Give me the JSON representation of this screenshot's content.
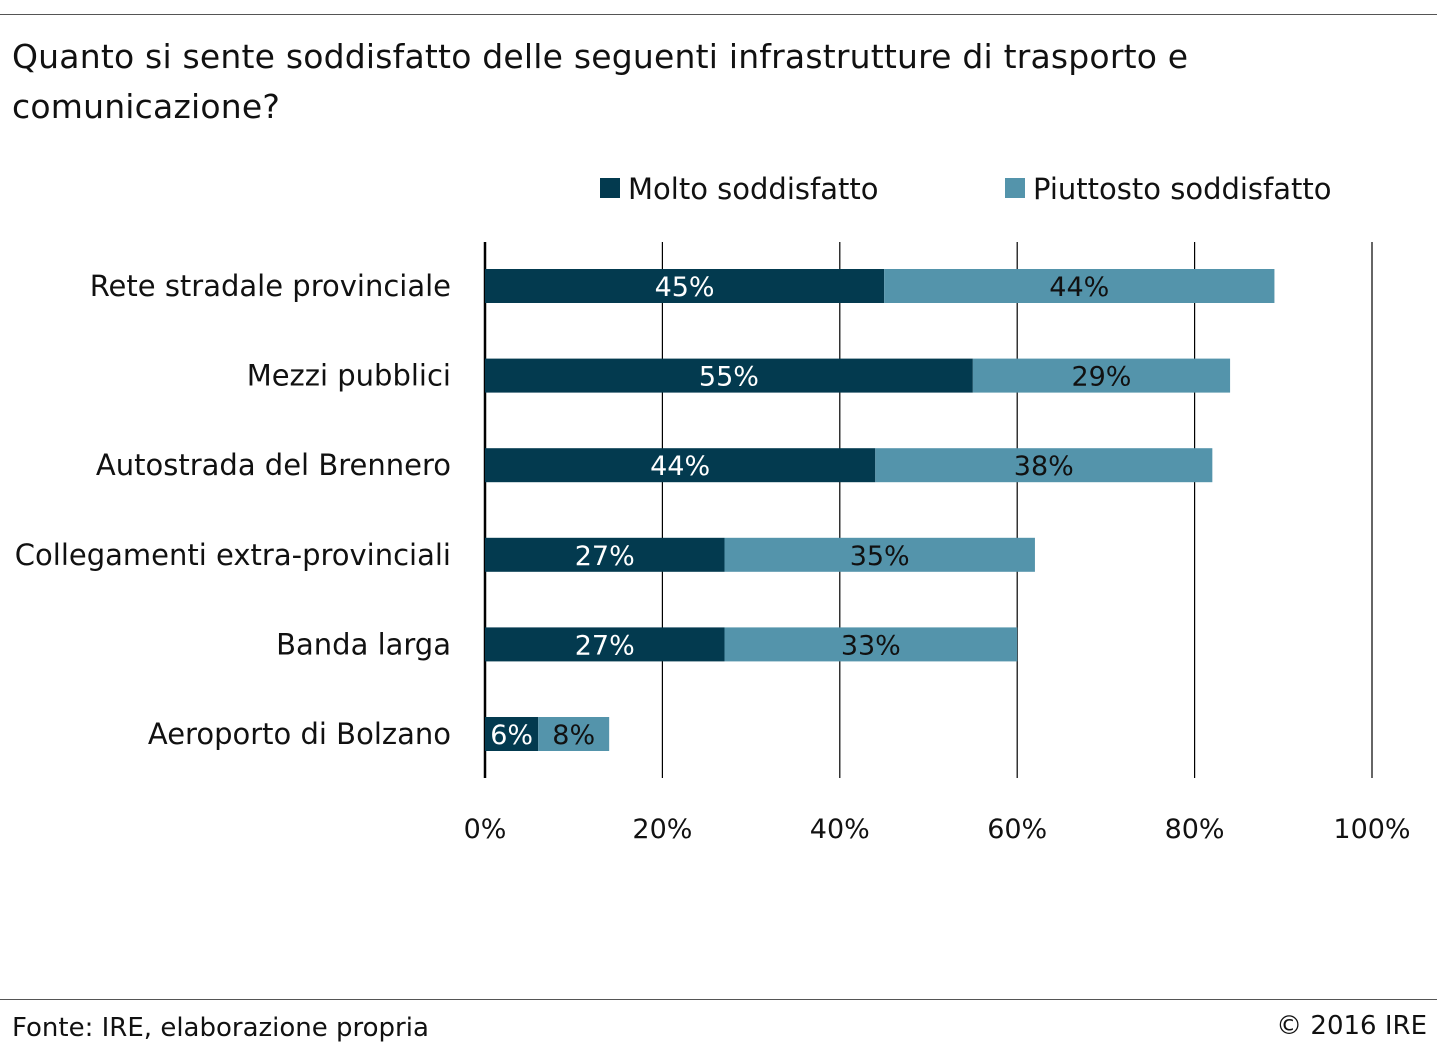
{
  "title": "Quanto si sente soddisfatto delle seguenti infrastrutture di trasporto e comunicazione?",
  "footer": {
    "source": "Fonte: IRE, elaborazione propria",
    "copyright": "© 2016 IRE"
  },
  "colors": {
    "molto": "#033a4f",
    "piuttosto": "#5494ab",
    "grid": "#000000"
  },
  "chart_data": {
    "type": "bar",
    "orientation": "horizontal",
    "stacked": true,
    "categories": [
      "Rete stradale provinciale",
      "Mezzi pubblici",
      "Autostrada del Brennero",
      "Collegamenti extra-provinciali",
      "Banda larga",
      "Aeroporto di Bolzano"
    ],
    "series": [
      {
        "name": "Molto soddisfatto",
        "values": [
          45,
          55,
          44,
          27,
          27,
          6
        ],
        "labels": [
          "45%",
          "55%",
          "44%",
          "27%",
          "27%",
          "6%"
        ],
        "color": "#033a4f",
        "label_color": "#ffffff"
      },
      {
        "name": "Piuttosto soddisfatto",
        "values": [
          44,
          29,
          38,
          35,
          33,
          8
        ],
        "labels": [
          "44%",
          "29%",
          "38%",
          "35%",
          "33%",
          "8%"
        ],
        "color": "#5494ab",
        "label_color": "#111111"
      }
    ],
    "xlim": [
      0,
      100
    ],
    "xticks": [
      0,
      20,
      40,
      60,
      80,
      100
    ],
    "xtick_labels": [
      "0%",
      "20%",
      "40%",
      "60%",
      "80%",
      "100%"
    ],
    "grid": "vertical",
    "legend_position": "top-right"
  }
}
